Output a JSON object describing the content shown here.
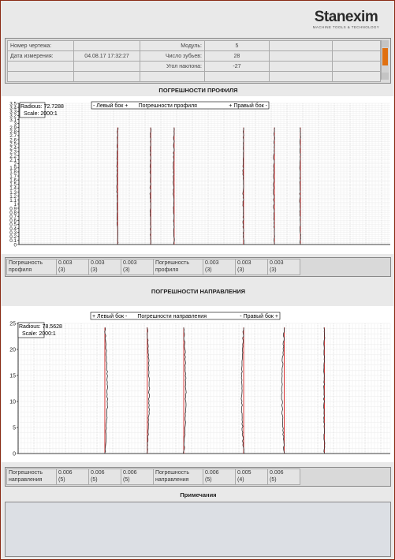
{
  "logo": {
    "name": "Stanexim",
    "tagline": "MACHINE TOOLS & TECHNOLOGY"
  },
  "info": {
    "rows": [
      [
        "Номер чертежа:",
        "",
        "Модуль:",
        "5",
        "",
        ""
      ],
      [
        "Дата измерения:",
        "04.08.17  17:32:27",
        "Число зубьев:",
        "28",
        "",
        ""
      ],
      [
        "",
        "",
        "Угол наклона:",
        "-27",
        "",
        ""
      ],
      [
        "",
        "",
        "",
        "",
        "",
        ""
      ]
    ]
  },
  "profile": {
    "title": "ПОГРЕШНОСТИ ПРОФИЛЯ",
    "radius": "Radious: 72.7288",
    "scale": "Scale: 2000:1",
    "legend_left": "- Левый бок +",
    "legend_mid": "Погрешности профиля",
    "legend_right": "+ Правый бок -",
    "results": [
      {
        "a": "Погрешность",
        "b": "профиля"
      },
      {
        "a": "0.003",
        "b": "(3)"
      },
      {
        "a": "0.003",
        "b": "(3)"
      },
      {
        "a": "0.003",
        "b": "(3)"
      },
      {
        "a": "Погрешность",
        "b": "профиля"
      },
      {
        "a": "0.003",
        "b": "(3)"
      },
      {
        "a": "0.003",
        "b": "(3)"
      },
      {
        "a": "0.003",
        "b": "(3)"
      }
    ]
  },
  "direction": {
    "title": "ПОГРЕШНОСТИ НАПРАВЛЕНИЯ",
    "radius": "Radious: 78.5628",
    "scale": "Scale: 2000:1",
    "legend_left": "+ Левый бок -",
    "legend_mid": "Погрешности направления",
    "legend_right": "- Правый бок +",
    "results": [
      {
        "a": "Погрешность",
        "b": "направления"
      },
      {
        "a": "0.006",
        "b": "(5)"
      },
      {
        "a": "0.006",
        "b": "(5)"
      },
      {
        "a": "0.006",
        "b": "(5)"
      },
      {
        "a": "Погрешность",
        "b": "направления"
      },
      {
        "a": "0.006",
        "b": "(5)"
      },
      {
        "a": "0.005",
        "b": "(4)"
      },
      {
        "a": "0.006",
        "b": "(5)"
      }
    ]
  },
  "notes": {
    "title": "Примечания"
  },
  "chart_data": [
    {
      "type": "line",
      "title": "ПОГРЕШНОСТИ ПРОФИЛЯ",
      "ylim": [
        0,
        3.5
      ],
      "y_ticks": [
        "0",
        "0.1",
        "0.2",
        "0.3",
        "0.4",
        "0.5",
        "0.6",
        "0.7",
        "0.8",
        "0.9",
        "1",
        "1.1",
        "1.2",
        "1.3",
        "1.4",
        "1.5",
        "1.6",
        "1.7",
        "1.8",
        "1.9",
        "2",
        "2.1",
        "2.2",
        "2.3",
        "2.4",
        "2.5",
        "2.6",
        "2.7",
        "2.8",
        "2.9",
        "3",
        "3.1",
        "3.2",
        "3.3",
        "3.4",
        "3.5"
      ],
      "grid": true,
      "traces": 6,
      "colors": {
        "measured": "#333333",
        "nominal": "#d42020"
      }
    },
    {
      "type": "line",
      "title": "ПОГРЕШНОСТИ НАПРАВЛЕНИЯ",
      "ylim": [
        0,
        25
      ],
      "y_ticks": [
        "0",
        "5",
        "10",
        "15",
        "20",
        "25"
      ],
      "grid": true,
      "traces": 6,
      "colors": {
        "measured": "#333333",
        "nominal": "#d42020"
      }
    }
  ]
}
